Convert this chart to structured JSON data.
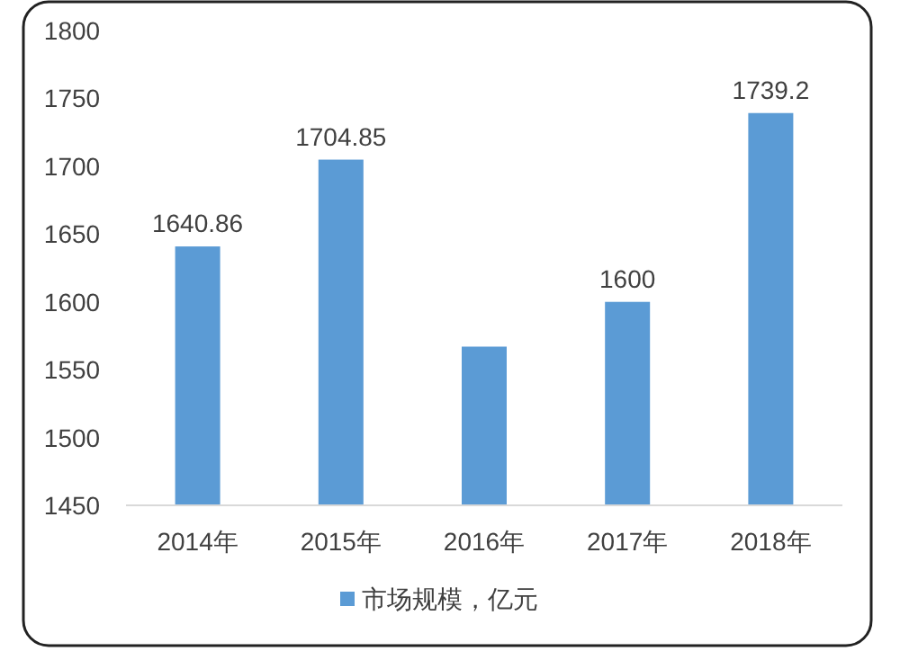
{
  "chart_data": {
    "type": "bar",
    "categories": [
      "2014年",
      "2015年",
      "2016年",
      "2017年",
      "2018年"
    ],
    "series": [
      {
        "name": "市场规模，亿元",
        "color": "#5b9bd5",
        "values": [
          1640.86,
          1704.85,
          1567,
          1600,
          1739.2
        ],
        "value_labels": [
          "1640.86",
          "1704.85",
          null,
          "1600",
          "1739.2"
        ]
      }
    ],
    "ylim": [
      1450,
      1800
    ],
    "yticks": [
      1450,
      1500,
      1550,
      1600,
      1650,
      1700,
      1750,
      1800
    ],
    "grid": false,
    "legend": "bottom"
  }
}
